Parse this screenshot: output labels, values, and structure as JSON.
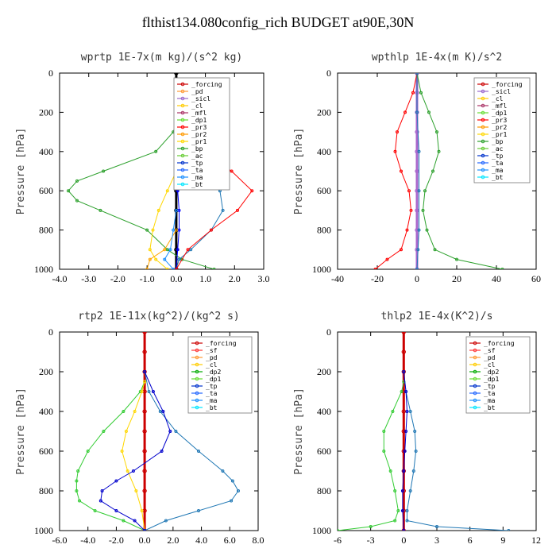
{
  "figure_title": "flthist134.080config_rich  BUDGET at90E,30N",
  "chart_data": [
    {
      "type": "line",
      "title": "wprtp  1E-7x(m kg)/(s^2 kg)",
      "ylabel": "Pressure [hPa]",
      "xlim": [
        -4.0,
        3.0
      ],
      "ylim": [
        1000,
        0
      ],
      "xticks": [
        "-4.0",
        "-3.0",
        "-2.0",
        "-1.0",
        "0.0",
        "1.0",
        "2.0",
        "3.0"
      ],
      "yticks": [
        "0",
        "200",
        "400",
        "600",
        "800",
        "1000"
      ],
      "x_label": "",
      "legend": [
        "_forcing",
        "_pd",
        "_sicl",
        "_cl",
        "_mfl",
        "_dp1",
        "_pr3",
        "_pr2",
        "_pr1",
        "_bp",
        "_ac",
        "_tp",
        "_ta",
        "_ma",
        "_bt"
      ],
      "series": [
        {
          "name": "_forcing",
          "color": "#000000",
          "p": [
            0,
            100,
            200,
            300,
            400,
            500,
            600,
            700,
            800,
            900,
            1000
          ],
          "values": [
            0,
            0,
            0,
            0,
            0,
            0,
            0,
            0,
            0,
            0,
            0
          ]
        },
        {
          "name": "_bp",
          "color": "#2ca02c",
          "p": [
            250,
            300,
            400,
            500,
            550,
            600,
            650,
            700,
            800,
            900,
            950,
            1000
          ],
          "values": [
            0,
            -0.1,
            -0.7,
            -2.5,
            -3.4,
            -3.7,
            -3.4,
            -2.6,
            -1.0,
            -0.3,
            0.2,
            1.3
          ]
        },
        {
          "name": "_tp",
          "color": "#1f77b4",
          "p": [
            300,
            400,
            500,
            600,
            700,
            800,
            900,
            950,
            1000
          ],
          "values": [
            0,
            0.3,
            0.8,
            1.5,
            1.6,
            1.2,
            0.5,
            0.1,
            0
          ]
        },
        {
          "name": "_ta",
          "color": "#0000ff",
          "p": [
            500,
            600,
            700,
            800,
            900,
            1000
          ],
          "values": [
            0,
            0.05,
            0.1,
            0.1,
            0.05,
            0
          ]
        },
        {
          "name": "_ac",
          "color": "#ff0000",
          "p": [
            250,
            300,
            400,
            500,
            600,
            700,
            800,
            900,
            1000
          ],
          "values": [
            0,
            0.3,
            0.9,
            1.9,
            2.6,
            2.1,
            1.2,
            0.4,
            0
          ]
        },
        {
          "name": "_pr1",
          "color": "#ffd700",
          "p": [
            500,
            600,
            700,
            800,
            900,
            950,
            1000
          ],
          "values": [
            0,
            -0.3,
            -0.6,
            -0.8,
            -0.9,
            -0.7,
            -0.3
          ]
        },
        {
          "name": "_pr2",
          "color": "#ffa500",
          "p": [
            800,
            900,
            950,
            1000
          ],
          "values": [
            0,
            -0.4,
            -0.9,
            -1.0
          ]
        },
        {
          "name": "_ma",
          "color": "#1e90ff",
          "p": [
            700,
            800,
            900,
            950,
            1000
          ],
          "values": [
            0,
            -0.1,
            -0.2,
            -0.4,
            -0.1
          ]
        }
      ]
    },
    {
      "type": "line",
      "title": "wpthlp  1E-4x(m K)/s^2",
      "ylabel": "Pressure [hPa]",
      "xlim": [
        -40,
        60
      ],
      "ylim": [
        1000,
        0
      ],
      "xticks": [
        "-40",
        "-20",
        "0",
        "20",
        "40",
        "60"
      ],
      "yticks": [
        "0",
        "200",
        "400",
        "600",
        "800",
        "1000"
      ],
      "x_label": "",
      "legend": [
        "_forcing",
        "_sicl",
        "_cl",
        "_mfl",
        "_dp1",
        "_pr3",
        "_pr2",
        "_pr1",
        "_bp",
        "_ac",
        "_tp",
        "_ta",
        "_ma",
        "_bt"
      ],
      "series": [
        {
          "name": "_forcing",
          "color": "#aa66cc",
          "p": [
            0,
            100,
            200,
            300,
            400,
            500,
            600,
            700,
            800,
            900,
            1000
          ],
          "values": [
            0,
            0,
            0,
            0,
            0,
            0,
            0,
            0,
            0,
            0,
            0
          ]
        },
        {
          "name": "_bp",
          "color": "#2ca02c",
          "p": [
            0,
            100,
            200,
            300,
            400,
            500,
            600,
            700,
            800,
            900,
            950,
            1000
          ],
          "values": [
            0,
            2,
            6,
            10,
            11,
            8,
            4,
            3,
            5,
            9,
            20,
            43
          ]
        },
        {
          "name": "_dp1",
          "color": "#ff0000",
          "p": [
            0,
            100,
            200,
            300,
            400,
            500,
            600,
            700,
            800,
            900,
            950,
            1000
          ],
          "values": [
            0,
            -2,
            -6,
            -10,
            -11,
            -8,
            -4,
            -3,
            -5,
            -8,
            -15,
            -21
          ]
        },
        {
          "name": "_tp",
          "color": "#1f77b4",
          "p": [
            0,
            200,
            400,
            600,
            800,
            900,
            1000
          ],
          "values": [
            0,
            0,
            1,
            1,
            1,
            0.5,
            0
          ]
        }
      ]
    },
    {
      "type": "line",
      "title": "rtp2  1E-11x(kg^2)/(kg^2 s)",
      "ylabel": "Pressure [hPa]",
      "xlim": [
        -6.0,
        8.0
      ],
      "ylim": [
        1000,
        0
      ],
      "xticks": [
        "-6.0",
        "-4.0",
        "-2.0",
        "0.0",
        "2.0",
        "4.0",
        "6.0",
        "8.0"
      ],
      "yticks": [
        "0",
        "200",
        "400",
        "600",
        "800",
        "1000"
      ],
      "x_label": "",
      "legend": [
        "_forcing",
        "_sf",
        "_pd",
        "_cl",
        "_dp2",
        "_dp1",
        "_tp",
        "_ta",
        "_ma",
        "_bt"
      ],
      "series": [
        {
          "name": "_forcing",
          "color": "#cc0000",
          "p": [
            0,
            100,
            200,
            300,
            400,
            500,
            600,
            700,
            800,
            900,
            1000
          ],
          "values": [
            0,
            0,
            0,
            0,
            0,
            0,
            0,
            0,
            0,
            0,
            0
          ]
        },
        {
          "name": "_dp1",
          "color": "#33cc33",
          "p": [
            250,
            300,
            400,
            500,
            600,
            700,
            750,
            800,
            850,
            900,
            950,
            1000
          ],
          "values": [
            0,
            -0.3,
            -1.5,
            -2.9,
            -4.0,
            -4.7,
            -4.8,
            -4.8,
            -4.6,
            -3.5,
            -1.5,
            0
          ]
        },
        {
          "name": "_cl",
          "color": "#ffd700",
          "p": [
            250,
            300,
            400,
            500,
            600,
            700,
            800,
            900,
            1000
          ],
          "values": [
            0,
            -0.2,
            -0.7,
            -1.3,
            -1.6,
            -1.2,
            -0.6,
            -0.2,
            0
          ]
        },
        {
          "name": "_tp",
          "color": "#1f77b4",
          "p": [
            200,
            300,
            400,
            500,
            600,
            700,
            750,
            800,
            850,
            900,
            950,
            1000
          ],
          "values": [
            0,
            0.3,
            1.1,
            2.2,
            3.8,
            5.5,
            6.2,
            6.6,
            6.1,
            3.8,
            1.5,
            0
          ]
        },
        {
          "name": "_ta",
          "color": "#0000cc",
          "p": [
            200,
            300,
            400,
            500,
            600,
            700,
            750,
            800,
            850,
            900,
            950,
            1000
          ],
          "values": [
            0,
            0.6,
            1.3,
            1.8,
            1.2,
            -0.8,
            -2.0,
            -3.0,
            -3.1,
            -2.0,
            -0.7,
            0
          ]
        }
      ]
    },
    {
      "type": "line",
      "title": "thlp2  1E-4x(K^2)/s",
      "ylabel": "Pressure [hPa]",
      "xlim": [
        -6,
        12
      ],
      "ylim": [
        1000,
        0
      ],
      "xticks": [
        "-6",
        "-3",
        "0",
        "3",
        "6",
        "9",
        "12"
      ],
      "yticks": [
        "0",
        "200",
        "400",
        "600",
        "800",
        "1000"
      ],
      "x_label": "",
      "legend": [
        "_forcing",
        "_sf",
        "_pd",
        "_cl",
        "_dp2",
        "_dp1",
        "_tp",
        "_ta",
        "_ma",
        "_bt"
      ],
      "series": [
        {
          "name": "_forcing",
          "color": "#cc0000",
          "p": [
            0,
            100,
            200,
            300,
            400,
            500,
            600,
            700,
            800,
            900,
            1000
          ],
          "values": [
            0,
            0,
            0,
            0,
            0,
            0,
            0,
            0,
            0,
            0,
            0
          ]
        },
        {
          "name": "_dp1",
          "color": "#33cc33",
          "p": [
            250,
            300,
            400,
            500,
            600,
            700,
            800,
            900,
            950,
            980,
            1000
          ],
          "values": [
            0,
            -0.2,
            -1.0,
            -1.8,
            -1.8,
            -1.2,
            -0.8,
            -0.5,
            -0.8,
            -3.0,
            -6.0
          ]
        },
        {
          "name": "_tp",
          "color": "#1f77b4",
          "p": [
            200,
            300,
            400,
            500,
            600,
            700,
            800,
            900,
            950,
            980,
            1000
          ],
          "values": [
            0,
            0.2,
            0.6,
            1.0,
            1.1,
            0.9,
            0.6,
            0.3,
            0.3,
            3.0,
            9.5
          ]
        },
        {
          "name": "_ta",
          "color": "#0000cc",
          "p": [
            200,
            300,
            400,
            500,
            600,
            700,
            800,
            900,
            1000
          ],
          "values": [
            0,
            0.2,
            0.3,
            0.2,
            0.1,
            0,
            -0.1,
            -0.1,
            0
          ]
        }
      ]
    }
  ]
}
